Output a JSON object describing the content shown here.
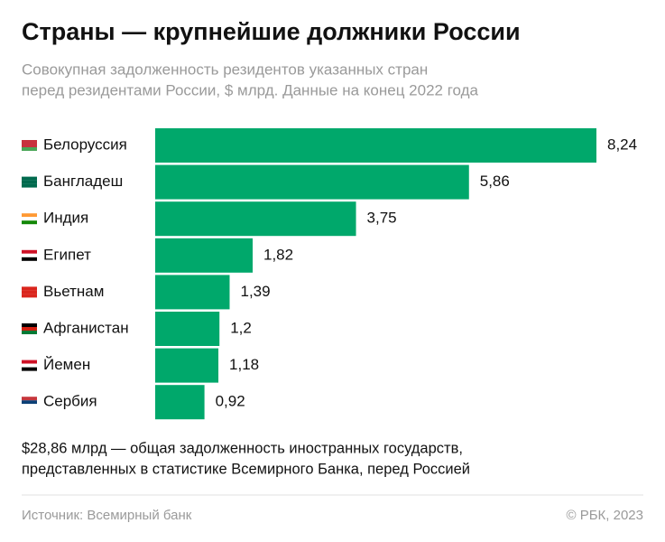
{
  "chart_data": {
    "type": "bar",
    "orientation": "horizontal",
    "title": "Страны — крупнейшие должники России",
    "subtitle": [
      "Совокупная задолженность резидентов указанных стран",
      "перед резидентами России, $ млрд. Данные на конец 2022 года"
    ],
    "categories": [
      "Белоруссия",
      "Бангладеш",
      "Индия",
      "Египет",
      "Вьетнам",
      "Афганистан",
      "Йемен",
      "Сербия"
    ],
    "values": [
      8.24,
      5.86,
      3.75,
      1.82,
      1.39,
      1.2,
      1.18,
      0.92
    ],
    "value_labels": [
      "8,24",
      "5,86",
      "3,75",
      "1,82",
      "1,39",
      "1,2",
      "1,18",
      "0,92"
    ],
    "color": "#00a86b",
    "note": [
      "$28,86 млрд — общая задолженность иностранных государств,",
      "представленных в статистике Всемирного Банка, перед Россией"
    ],
    "source": "Источник: Всемирный банк",
    "copyright": "© РБК, 2023"
  }
}
